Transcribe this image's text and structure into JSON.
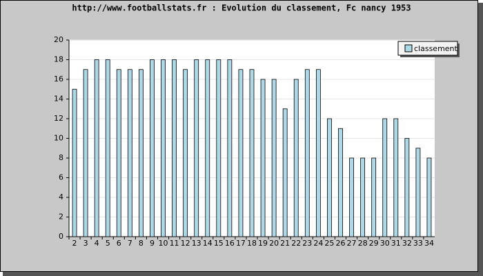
{
  "chart_data": {
    "type": "bar",
    "title": "http://www.footballstats.fr : Evolution du classement, Fc nancy 1953",
    "x": [
      2,
      3,
      4,
      5,
      6,
      7,
      8,
      9,
      10,
      11,
      12,
      13,
      14,
      15,
      16,
      17,
      18,
      19,
      20,
      21,
      22,
      23,
      24,
      25,
      26,
      27,
      28,
      29,
      30,
      31,
      32,
      33,
      34
    ],
    "series": [
      {
        "name": "classement",
        "color": "#add8e6",
        "values": [
          15,
          17,
          18,
          18,
          17,
          17,
          17,
          18,
          18,
          18,
          17,
          18,
          18,
          18,
          18,
          17,
          17,
          16,
          16,
          13,
          16,
          17,
          17,
          12,
          11,
          8,
          8,
          8,
          12,
          12,
          10,
          9,
          8
        ]
      }
    ],
    "ylim": [
      0,
      20
    ],
    "yticks": [
      0,
      2,
      4,
      6,
      8,
      10,
      12,
      14,
      16,
      18,
      20
    ],
    "grid": true,
    "legend": "top-right"
  }
}
